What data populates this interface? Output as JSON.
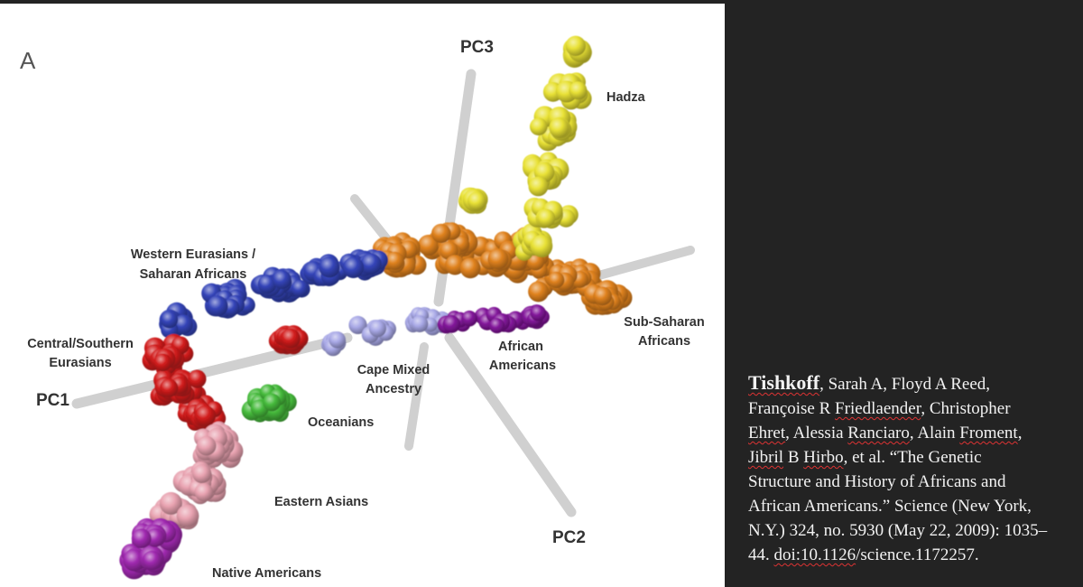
{
  "figure": {
    "panel_letter": "A",
    "axes": {
      "pc1": "PC1",
      "pc2": "PC2",
      "pc3": "PC3"
    },
    "groups": {
      "hadza": {
        "label": "Hadza",
        "color": "#e8e135"
      },
      "sub_saharan": {
        "label_line1": "Sub-Saharan",
        "label_line2": "Africans",
        "color": "#e0821e"
      },
      "western_eurasians": {
        "label_line1": "Western Eurasians /",
        "label_line2": "Saharan Africans",
        "color": "#3444b8"
      },
      "central_southern": {
        "label_line1": "Central/Southern",
        "label_line2": "Eurasians",
        "color": "#d21c1c"
      },
      "cape_mixed": {
        "label_line1": "Cape Mixed",
        "label_line2": "Ancestry",
        "color": "#a8a8e6"
      },
      "african_americans": {
        "label_line1": "African",
        "label_line2": "Americans",
        "color": "#82169a"
      },
      "oceanians": {
        "label": "Oceanians",
        "color": "#46bb3c"
      },
      "eastern_asians": {
        "label": "Eastern Asians",
        "color": "#e8a2b0"
      },
      "native_americans": {
        "label": "Native Americans",
        "color": "#a02ab0"
      }
    }
  },
  "citation": {
    "author_surname": "Tishkoff",
    "t01": ", Sarah A, Floyd A Reed,",
    "t02": "Françoise R ",
    "s02": "Friedlaender",
    "t03": ", Christopher",
    "s03": "Ehret",
    "t04": ", Alessia ",
    "s04": "Ranciaro",
    "t05": ", Alain ",
    "s05": "Froment",
    "t06": ",",
    "s06": "Jibril",
    "t07": " B ",
    "s07": "Hirbo",
    "t08": ", et al. “The Genetic",
    "t09": "Structure and History of Africans and",
    "t10": "African Americans.” Science (New York,",
    "t11": "N.Y.) 324, no. 5930 (May 22, 2009): 1035–",
    "t12": "44. ",
    "s12": "doi:10.1126",
    "t13": "/science.1172257."
  }
}
